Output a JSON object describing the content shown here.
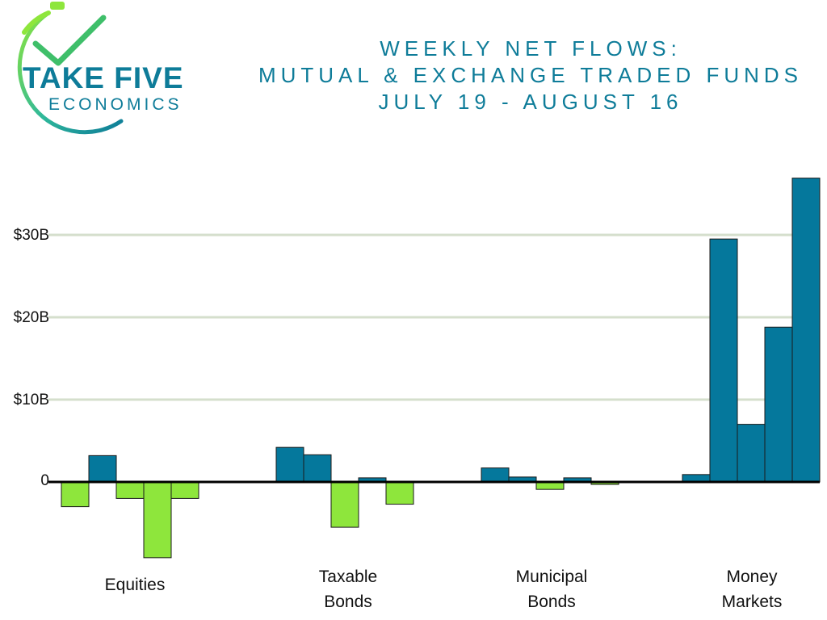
{
  "logo": {
    "main_text": "TAKE FIVE",
    "sub_text": "ECONOMICS",
    "icon": "stopwatch-check-icon"
  },
  "title": {
    "lines": [
      "WEEKLY NET FLOWS:",
      "MUTUAL & EXCHANGE TRADED FUNDS",
      "JULY 19 - AUGUST 16"
    ]
  },
  "colors": {
    "inflow": "#05789c",
    "outflow": "#8ee63c",
    "grid": "#d5dfcc",
    "axis": "#000000",
    "title": "#0e7c99"
  },
  "chart_data": {
    "type": "bar",
    "title": "WEEKLY NET FLOWS: MUTUAL & EXCHANGE TRADED FUNDS JULY 19 - AUGUST 16",
    "categories": [
      "Equities",
      "Taxable Bonds",
      "Municipal Bonds",
      "Money Markets"
    ],
    "category_label_lines": [
      [
        "Equities"
      ],
      [
        "Taxable",
        "Bonds"
      ],
      [
        "Municipal",
        "Bonds"
      ],
      [
        "Money",
        "Markets"
      ]
    ],
    "weeks_per_category": 5,
    "unit": "billions USD",
    "values": [
      [
        -3.0,
        3.2,
        -2.0,
        -9.2,
        -2.0
      ],
      [
        4.2,
        3.3,
        -5.5,
        0.5,
        -2.7
      ],
      [
        1.7,
        0.6,
        -0.9,
        0.5,
        -0.3
      ],
      [
        0.9,
        29.5,
        7.0,
        18.8,
        36.9
      ]
    ],
    "y_ticks": [
      {
        "value": 0,
        "label": "0"
      },
      {
        "value": 10,
        "label": "$10B"
      },
      {
        "value": 20,
        "label": "$20B"
      },
      {
        "value": 30,
        "label": "$30B"
      }
    ],
    "ylim": [
      -10,
      38
    ],
    "grid": true,
    "legend": "none"
  }
}
